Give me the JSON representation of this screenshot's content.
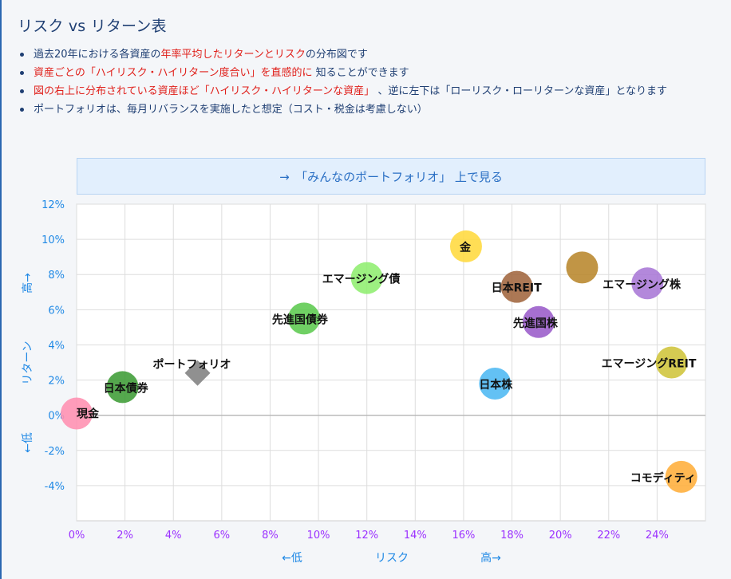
{
  "header": {
    "title": "リスク vs リターン表"
  },
  "bullets": [
    {
      "segments": [
        {
          "text": "過去20年における各資産の",
          "red": false
        },
        {
          "text": "年率平均したリターンとリスク",
          "red": true
        },
        {
          "text": "の分布図です",
          "red": false
        }
      ]
    },
    {
      "segments": [
        {
          "text": "資産ごとの「ハイリスク・ハイリターン度合い」を直感的に",
          "red": true
        },
        {
          "text": " 知ることができます",
          "red": false
        }
      ]
    },
    {
      "segments": [
        {
          "text": "図の右上に分布されている資産ほど「ハイリスク・ハイリターンな資産」",
          "red": true
        },
        {
          "text": " 、逆に左下は「ローリスク・ローリターンな資産」となります",
          "red": false
        }
      ]
    },
    {
      "segments": [
        {
          "text": "ポートフォリオは、毎月リバランスを実施したと想定（コスト・税金は考慮しない）",
          "red": false
        }
      ]
    }
  ],
  "link": {
    "label": "→　「みんなのポートフォリオ」 上で見る"
  },
  "colors": {
    "axis_text": "#1e88e5",
    "x_tick_text": "#9b30ff",
    "grid": "#dddddd",
    "heading": "#1f3f73"
  },
  "chart_data": {
    "type": "scatter",
    "xlim": [
      0,
      26
    ],
    "ylim": [
      -6,
      12
    ],
    "x_ticks": [
      "0%",
      "2%",
      "4%",
      "6%",
      "8%",
      "10%",
      "12%",
      "14%",
      "16%",
      "18%",
      "20%",
      "22%",
      "24%"
    ],
    "y_ticks": [
      "12%",
      "10%",
      "8%",
      "6%",
      "4%",
      "2%",
      "0%",
      "-2%",
      "-4%"
    ],
    "xlabel": {
      "low": "←低",
      "mid": "リスク",
      "high": "高→"
    },
    "ylabel": {
      "high": "高→",
      "mid": "リターン",
      "low": "←低"
    },
    "grid": true,
    "points": [
      {
        "name": "現金",
        "x": 0.0,
        "y": 0.1,
        "color": "#ff8fb1",
        "marker": "circle"
      },
      {
        "name": "日本債券",
        "x": 1.9,
        "y": 1.6,
        "color": "#3e9c35",
        "marker": "circle"
      },
      {
        "name": "ポートフォリオ",
        "x": 5.0,
        "y": 2.4,
        "color": "#8a8a8a",
        "marker": "diamond"
      },
      {
        "name": "先進国債券",
        "x": 9.4,
        "y": 5.5,
        "color": "#5cc94f",
        "marker": "circle"
      },
      {
        "name": "エマージング債",
        "x": 12.0,
        "y": 7.8,
        "color": "#90ee70",
        "marker": "circle"
      },
      {
        "name": "金",
        "x": 16.1,
        "y": 9.6,
        "color": "#ffd93d",
        "marker": "circle"
      },
      {
        "name": "日本株",
        "x": 17.3,
        "y": 1.8,
        "color": "#4db8f2",
        "marker": "circle"
      },
      {
        "name": "日本REIT",
        "x": 18.2,
        "y": 7.3,
        "color": "#a0653e",
        "marker": "circle"
      },
      {
        "name": "先進国株",
        "x": 19.1,
        "y": 5.3,
        "color": "#9a5bc9",
        "marker": "circle"
      },
      {
        "name": "",
        "x": 20.9,
        "y": 8.4,
        "color": "#b8862b",
        "marker": "circle"
      },
      {
        "name": "エマージング株",
        "x": 23.6,
        "y": 7.5,
        "color": "#a978d6",
        "marker": "circle"
      },
      {
        "name": "エマージングREIT",
        "x": 24.6,
        "y": 3.0,
        "color": "#cfc43a",
        "marker": "circle"
      },
      {
        "name": "コモディティ",
        "x": 25.0,
        "y": -3.5,
        "color": "#ffae3a",
        "marker": "circle"
      }
    ]
  }
}
